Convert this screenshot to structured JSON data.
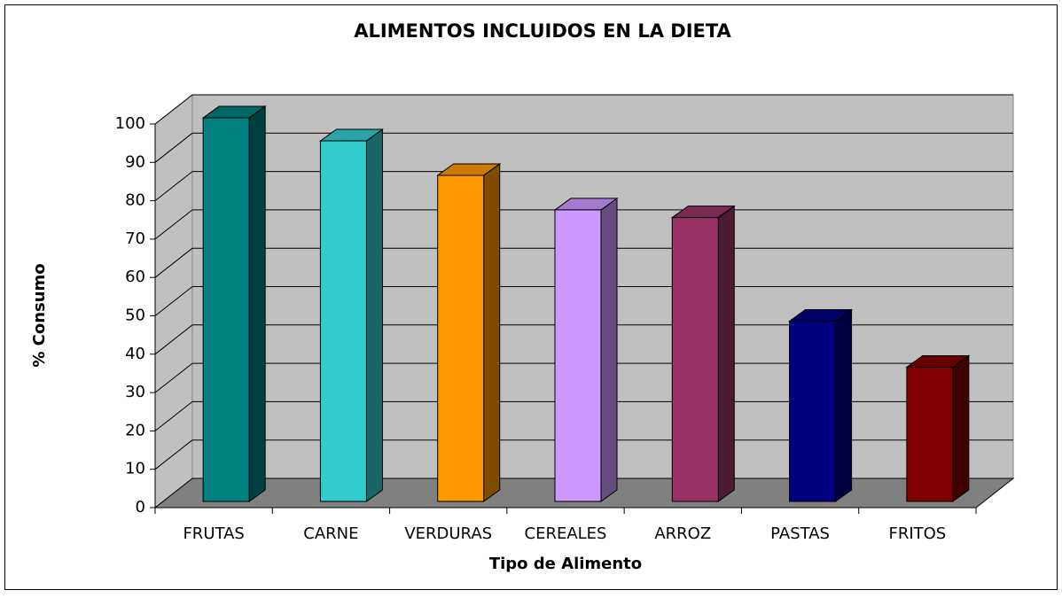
{
  "chart_data": {
    "type": "bar3d",
    "title": "ALIMENTOS INCLUIDOS EN LA DIETA",
    "x_label": "Tipo de Alimento",
    "y_label": "% Consumo",
    "categories": [
      "FRUTAS",
      "CARNE",
      "VERDURAS",
      "CEREALES",
      "ARROZ",
      "PASTAS",
      "FRITOS"
    ],
    "values": [
      100,
      94,
      85,
      76,
      74,
      47,
      35
    ],
    "colors": [
      "#008080",
      "#33cccc",
      "#ff9900",
      "#cc99ff",
      "#993366",
      "#000080",
      "#800000"
    ],
    "ylim": [
      0,
      100
    ],
    "yticks": [
      0,
      10,
      20,
      30,
      40,
      50,
      60,
      70,
      80,
      90,
      100
    ],
    "grid": true
  }
}
